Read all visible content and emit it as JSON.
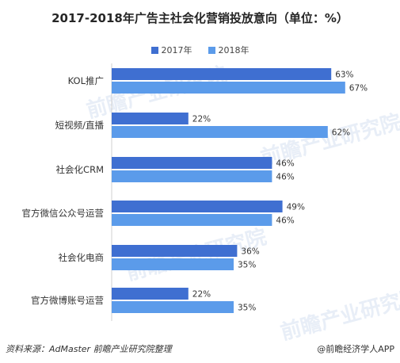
{
  "chart_data": {
    "type": "bar",
    "orientation": "horizontal",
    "title": "2017-2018年广告主社会化营销投放意向（单位：%）",
    "categories": [
      "KOL推广",
      "短视频/直播",
      "社会化CRM",
      "官方微信公众号运营",
      "社会化电商",
      "官方微博账号运营"
    ],
    "series": [
      {
        "name": "2017年",
        "values": [
          63,
          22,
          46,
          49,
          36,
          22
        ],
        "labels": [
          "63%",
          "22%",
          "46%",
          "49%",
          "36%",
          "22%"
        ],
        "color": "#3f6fd1"
      },
      {
        "name": "2018年",
        "values": [
          67,
          62,
          46,
          46,
          35,
          35
        ],
        "labels": [
          "67%",
          "62%",
          "46%",
          "46%",
          "35%",
          "35%"
        ],
        "color": "#5b9bea"
      }
    ],
    "xlim": [
      0,
      70
    ],
    "grid": false,
    "legend_position": "top-center"
  },
  "footer": {
    "source": "资料来源：AdMaster  前瞻产业研究院整理",
    "brand": "@前瞻经济学人APP"
  },
  "watermark": "前瞻产业研究院"
}
